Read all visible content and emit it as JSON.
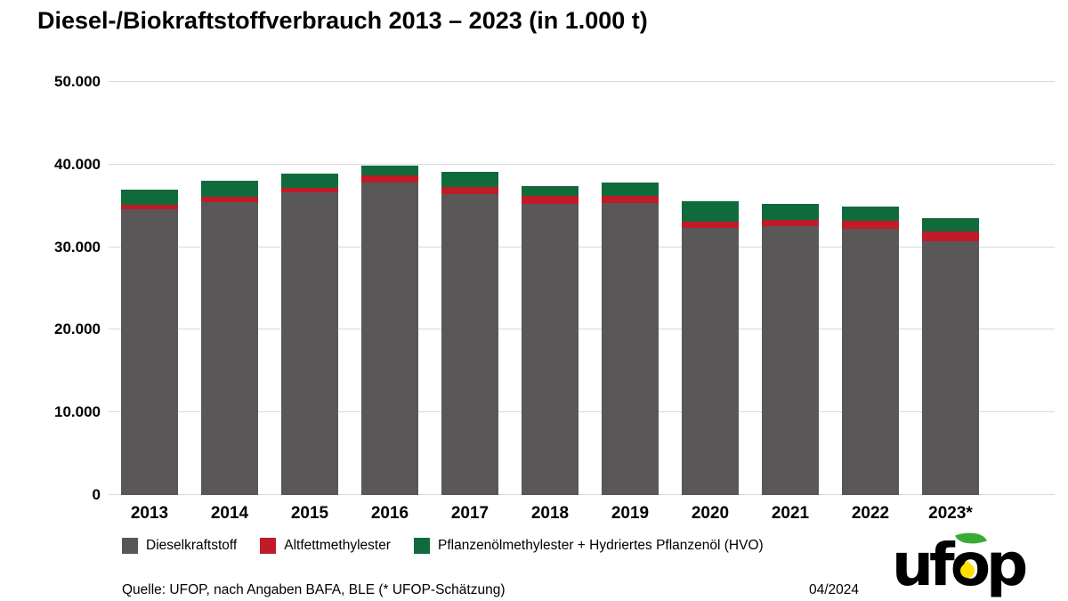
{
  "title": "Diesel-/Biokraftstoffverbrauch 2013 – 2023 (in 1.000 t)",
  "chart_data": {
    "type": "bar",
    "stacked": true,
    "unit": "1.000 t",
    "title": "Diesel-/Biokraftstoffverbrauch 2013 – 2023 (in 1.000 t)",
    "categories": [
      "2013",
      "2014",
      "2015",
      "2016",
      "2017",
      "2018",
      "2019",
      "2020",
      "2021",
      "2022",
      "2023*"
    ],
    "series": [
      {
        "name": "Dieselkraftstoff",
        "color": "#595757",
        "values": [
          34600,
          35500,
          36600,
          37800,
          36400,
          35200,
          35300,
          32300,
          32500,
          32200,
          30700
        ]
      },
      {
        "name": "Altfettmethylester",
        "color": "#c01b27",
        "values": [
          550,
          550,
          600,
          900,
          900,
          1000,
          900,
          800,
          800,
          1000,
          1200
        ]
      },
      {
        "name": "Pflanzenölmethylester + Hydriertes Pflanzenöl (HVO)",
        "color": "#0f6b3c",
        "values": [
          1850,
          1950,
          1700,
          1200,
          1800,
          1200,
          1600,
          2500,
          1900,
          1700,
          1600
        ]
      }
    ],
    "totals": [
      37000,
      38000,
      38900,
      39900,
      39100,
      37400,
      37800,
      35600,
      35200,
      34900,
      33500
    ],
    "ylim": [
      0,
      50000
    ],
    "ytick_step": 10000,
    "ytick_labels": [
      "0",
      "10.000",
      "20.000",
      "30.000",
      "40.000",
      "50.000"
    ],
    "grid": true,
    "gridline_color": "#d9d9d9",
    "legend_position": "bottom"
  },
  "footer": {
    "source": "Quelle: UFOP, nach Angaben BAFA, BLE (* UFOP-Schätzung)",
    "date": "04/2024"
  },
  "logo": {
    "left": "uf",
    "o": "o",
    "right": "p"
  }
}
